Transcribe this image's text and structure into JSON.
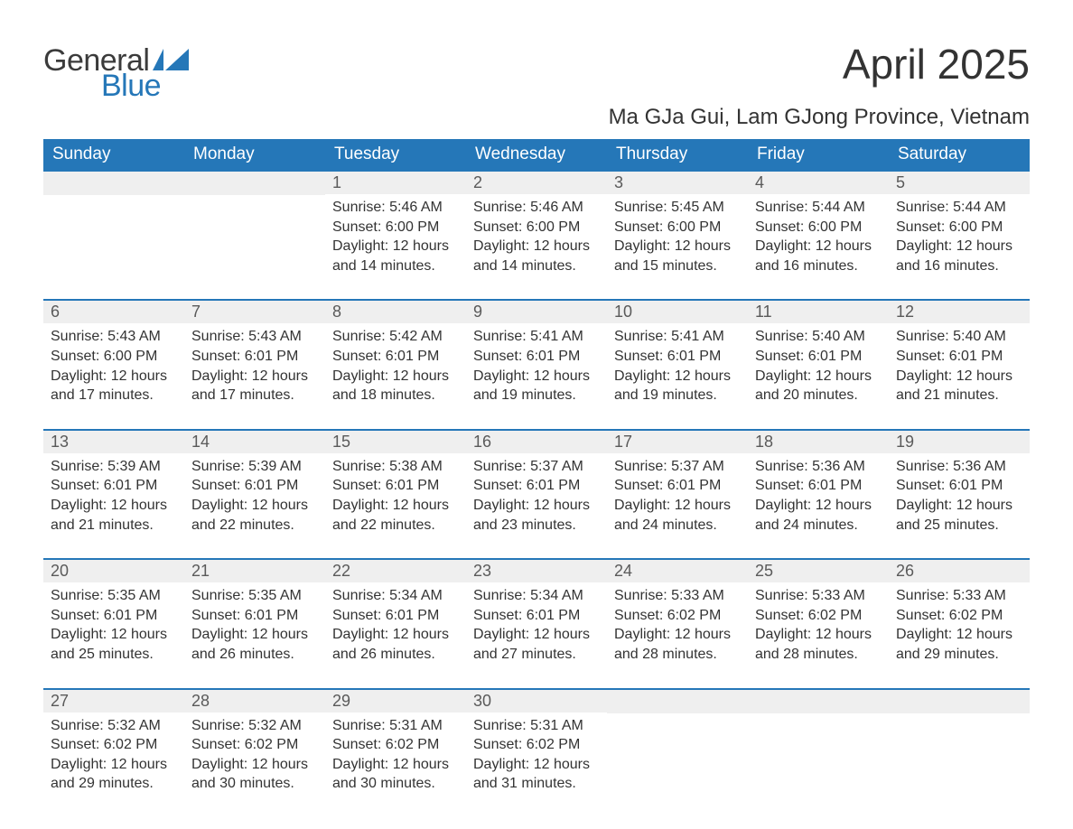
{
  "logo": {
    "general": "General",
    "blue": "Blue",
    "flag_color": "#2577b8"
  },
  "title": "April 2025",
  "location": "Ma GJa Gui, Lam GJong Province, Vietnam",
  "colors": {
    "accent": "#2577b8",
    "header_text": "#ffffff",
    "daynum_bg": "#efefef",
    "daynum_text": "#5a5a5a",
    "body_text": "#333333",
    "background": "#ffffff"
  },
  "typography": {
    "title_fontsize": 46,
    "location_fontsize": 24,
    "dayhead_fontsize": 19,
    "daynum_fontsize": 18,
    "body_fontsize": 16
  },
  "day_headers": [
    "Sunday",
    "Monday",
    "Tuesday",
    "Wednesday",
    "Thursday",
    "Friday",
    "Saturday"
  ],
  "weeks": [
    [
      {
        "blank": true
      },
      {
        "blank": true
      },
      {
        "day": "1",
        "sunrise": "Sunrise: 5:46 AM",
        "sunset": "Sunset: 6:00 PM",
        "daylight": "Daylight: 12 hours and 14 minutes."
      },
      {
        "day": "2",
        "sunrise": "Sunrise: 5:46 AM",
        "sunset": "Sunset: 6:00 PM",
        "daylight": "Daylight: 12 hours and 14 minutes."
      },
      {
        "day": "3",
        "sunrise": "Sunrise: 5:45 AM",
        "sunset": "Sunset: 6:00 PM",
        "daylight": "Daylight: 12 hours and 15 minutes."
      },
      {
        "day": "4",
        "sunrise": "Sunrise: 5:44 AM",
        "sunset": "Sunset: 6:00 PM",
        "daylight": "Daylight: 12 hours and 16 minutes."
      },
      {
        "day": "5",
        "sunrise": "Sunrise: 5:44 AM",
        "sunset": "Sunset: 6:00 PM",
        "daylight": "Daylight: 12 hours and 16 minutes."
      }
    ],
    [
      {
        "day": "6",
        "sunrise": "Sunrise: 5:43 AM",
        "sunset": "Sunset: 6:00 PM",
        "daylight": "Daylight: 12 hours and 17 minutes."
      },
      {
        "day": "7",
        "sunrise": "Sunrise: 5:43 AM",
        "sunset": "Sunset: 6:01 PM",
        "daylight": "Daylight: 12 hours and 17 minutes."
      },
      {
        "day": "8",
        "sunrise": "Sunrise: 5:42 AM",
        "sunset": "Sunset: 6:01 PM",
        "daylight": "Daylight: 12 hours and 18 minutes."
      },
      {
        "day": "9",
        "sunrise": "Sunrise: 5:41 AM",
        "sunset": "Sunset: 6:01 PM",
        "daylight": "Daylight: 12 hours and 19 minutes."
      },
      {
        "day": "10",
        "sunrise": "Sunrise: 5:41 AM",
        "sunset": "Sunset: 6:01 PM",
        "daylight": "Daylight: 12 hours and 19 minutes."
      },
      {
        "day": "11",
        "sunrise": "Sunrise: 5:40 AM",
        "sunset": "Sunset: 6:01 PM",
        "daylight": "Daylight: 12 hours and 20 minutes."
      },
      {
        "day": "12",
        "sunrise": "Sunrise: 5:40 AM",
        "sunset": "Sunset: 6:01 PM",
        "daylight": "Daylight: 12 hours and 21 minutes."
      }
    ],
    [
      {
        "day": "13",
        "sunrise": "Sunrise: 5:39 AM",
        "sunset": "Sunset: 6:01 PM",
        "daylight": "Daylight: 12 hours and 21 minutes."
      },
      {
        "day": "14",
        "sunrise": "Sunrise: 5:39 AM",
        "sunset": "Sunset: 6:01 PM",
        "daylight": "Daylight: 12 hours and 22 minutes."
      },
      {
        "day": "15",
        "sunrise": "Sunrise: 5:38 AM",
        "sunset": "Sunset: 6:01 PM",
        "daylight": "Daylight: 12 hours and 22 minutes."
      },
      {
        "day": "16",
        "sunrise": "Sunrise: 5:37 AM",
        "sunset": "Sunset: 6:01 PM",
        "daylight": "Daylight: 12 hours and 23 minutes."
      },
      {
        "day": "17",
        "sunrise": "Sunrise: 5:37 AM",
        "sunset": "Sunset: 6:01 PM",
        "daylight": "Daylight: 12 hours and 24 minutes."
      },
      {
        "day": "18",
        "sunrise": "Sunrise: 5:36 AM",
        "sunset": "Sunset: 6:01 PM",
        "daylight": "Daylight: 12 hours and 24 minutes."
      },
      {
        "day": "19",
        "sunrise": "Sunrise: 5:36 AM",
        "sunset": "Sunset: 6:01 PM",
        "daylight": "Daylight: 12 hours and 25 minutes."
      }
    ],
    [
      {
        "day": "20",
        "sunrise": "Sunrise: 5:35 AM",
        "sunset": "Sunset: 6:01 PM",
        "daylight": "Daylight: 12 hours and 25 minutes."
      },
      {
        "day": "21",
        "sunrise": "Sunrise: 5:35 AM",
        "sunset": "Sunset: 6:01 PM",
        "daylight": "Daylight: 12 hours and 26 minutes."
      },
      {
        "day": "22",
        "sunrise": "Sunrise: 5:34 AM",
        "sunset": "Sunset: 6:01 PM",
        "daylight": "Daylight: 12 hours and 26 minutes."
      },
      {
        "day": "23",
        "sunrise": "Sunrise: 5:34 AM",
        "sunset": "Sunset: 6:01 PM",
        "daylight": "Daylight: 12 hours and 27 minutes."
      },
      {
        "day": "24",
        "sunrise": "Sunrise: 5:33 AM",
        "sunset": "Sunset: 6:02 PM",
        "daylight": "Daylight: 12 hours and 28 minutes."
      },
      {
        "day": "25",
        "sunrise": "Sunrise: 5:33 AM",
        "sunset": "Sunset: 6:02 PM",
        "daylight": "Daylight: 12 hours and 28 minutes."
      },
      {
        "day": "26",
        "sunrise": "Sunrise: 5:33 AM",
        "sunset": "Sunset: 6:02 PM",
        "daylight": "Daylight: 12 hours and 29 minutes."
      }
    ],
    [
      {
        "day": "27",
        "sunrise": "Sunrise: 5:32 AM",
        "sunset": "Sunset: 6:02 PM",
        "daylight": "Daylight: 12 hours and 29 minutes."
      },
      {
        "day": "28",
        "sunrise": "Sunrise: 5:32 AM",
        "sunset": "Sunset: 6:02 PM",
        "daylight": "Daylight: 12 hours and 30 minutes."
      },
      {
        "day": "29",
        "sunrise": "Sunrise: 5:31 AM",
        "sunset": "Sunset: 6:02 PM",
        "daylight": "Daylight: 12 hours and 30 minutes."
      },
      {
        "day": "30",
        "sunrise": "Sunrise: 5:31 AM",
        "sunset": "Sunset: 6:02 PM",
        "daylight": "Daylight: 12 hours and 31 minutes."
      },
      {
        "blank": true
      },
      {
        "blank": true
      },
      {
        "blank": true
      }
    ]
  ]
}
